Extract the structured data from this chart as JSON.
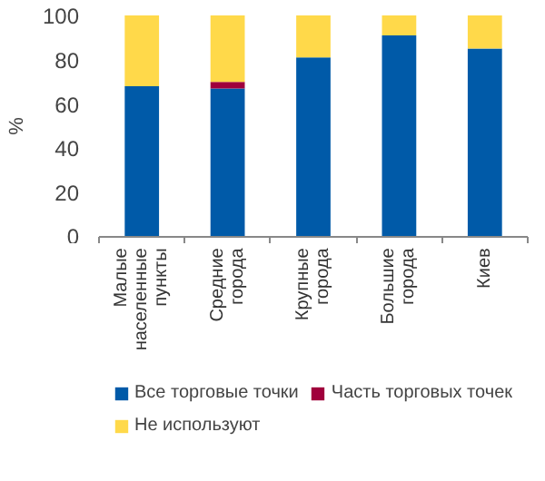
{
  "chart_data": {
    "type": "bar",
    "stacked": true,
    "ylabel": "%",
    "categories": [
      "Малые\nнаселенные\nпункты",
      "Средние\nгорода",
      "Крупные\nгорода",
      "Большие\nгорода",
      "Киев"
    ],
    "series": [
      {
        "name": "Все торговые точки",
        "color": "#005aa8",
        "values": [
          68,
          67,
          81,
          91,
          85
        ]
      },
      {
        "name": "Часть торговых точек",
        "color": "#a0003c",
        "values": [
          0,
          3,
          0,
          0,
          0
        ]
      },
      {
        "name": "Не используют",
        "color": "#ffd94a",
        "values": [
          32,
          30,
          19,
          9,
          15
        ]
      }
    ],
    "ylim": [
      0,
      100
    ],
    "yticks": [
      0,
      20,
      40,
      60,
      80,
      100
    ],
    "grid": false,
    "legend": "bottom"
  }
}
